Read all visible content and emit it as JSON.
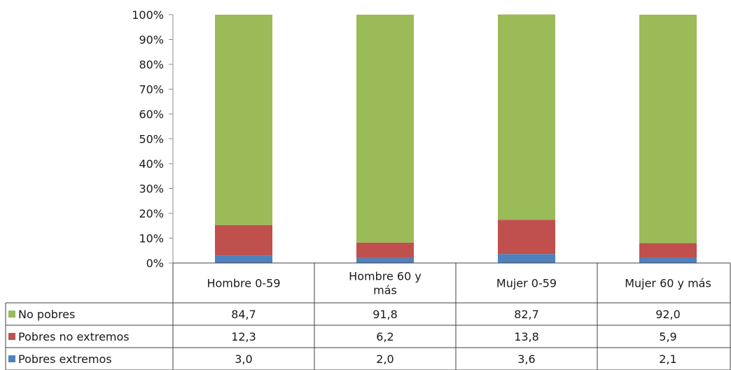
{
  "chart_data": {
    "type": "bar",
    "stacked": true,
    "percent_axis": true,
    "categories": [
      "Hombre 0-59",
      "Hombre 60 y más",
      "Mujer 0-59",
      "Mujer 60 y más"
    ],
    "category_lines": [
      [
        "Hombre 0-59"
      ],
      [
        "Hombre 60 y",
        "más"
      ],
      [
        "Mujer 0-59"
      ],
      [
        "Mujer 60 y más"
      ]
    ],
    "series": [
      {
        "name": "No pobres",
        "values": [
          84.7,
          91.8,
          82.7,
          92.0
        ],
        "labels": [
          "84,7",
          "91,8",
          "82,7",
          "92,0"
        ],
        "color": "#9bbb59"
      },
      {
        "name": "Pobres no extremos",
        "values": [
          12.3,
          6.2,
          13.8,
          5.9
        ],
        "labels": [
          "12,3",
          "6,2",
          "13,8",
          "5,9"
        ],
        "color": "#c0504d"
      },
      {
        "name": "Pobres extremos",
        "values": [
          3.0,
          2.0,
          3.6,
          2.1
        ],
        "labels": [
          "3,0",
          "2,0",
          "3,6",
          "2,1"
        ],
        "color": "#4f81bd"
      }
    ],
    "stack_order_bottom_to_top": [
      "Pobres extremos",
      "Pobres no extremos",
      "No pobres"
    ],
    "ylim": [
      0,
      100
    ],
    "yticks": [
      "0%",
      "10%",
      "20%",
      "30%",
      "40%",
      "50%",
      "60%",
      "70%",
      "80%",
      "90%",
      "100%"
    ],
    "grid": false,
    "legend": "data-table-left"
  }
}
